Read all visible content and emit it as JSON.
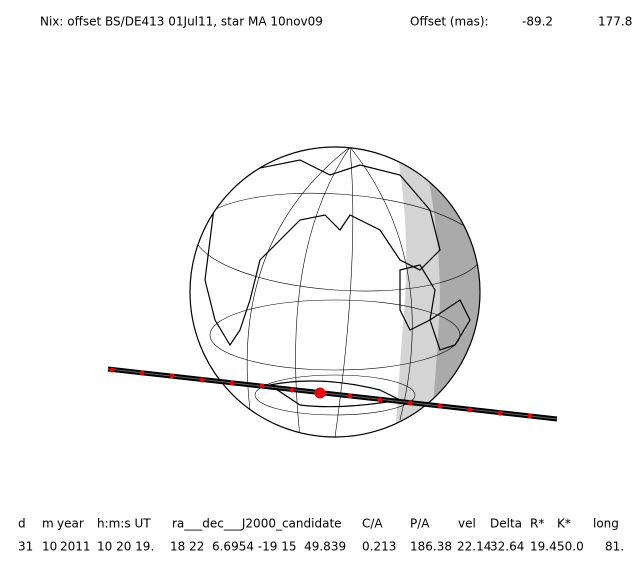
{
  "header": {
    "title": "Nix: offset BS/DE413 01Jul11, star MA 10nov09",
    "offset_label": "Offset (mas):",
    "offset_values": [
      "-89.2",
      "177.8"
    ]
  },
  "table": {
    "columns": [
      "d",
      "m",
      "year",
      "h:m:s UT",
      "ra___dec___J2000_candidate",
      "C/A",
      "P/A",
      "vel",
      "Delta",
      "R*",
      "K*",
      "long"
    ],
    "rows": [
      [
        "31",
        "10",
        "2011",
        "10 20 19.",
        "18 22  6.6954 -19 15  49.839",
        "0.213",
        "186.38",
        "22.14",
        "32.64",
        "19.4",
        "50.0",
        "81."
      ]
    ]
  }
}
